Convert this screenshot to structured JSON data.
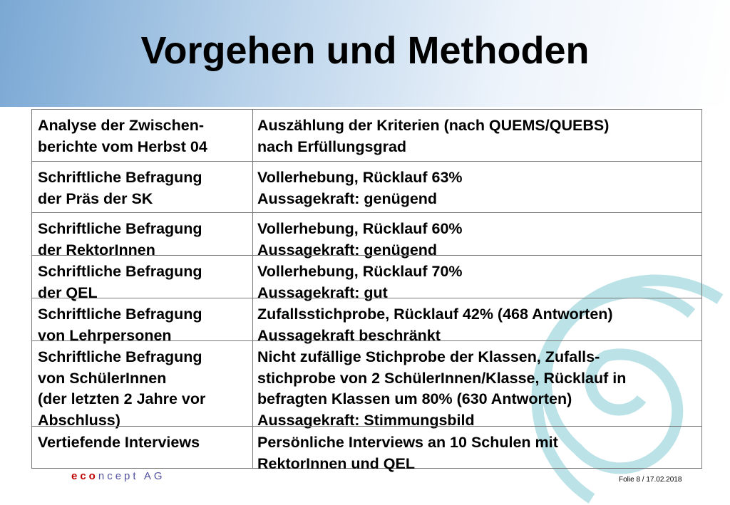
{
  "header": {
    "title": "Vorgehen und Methoden"
  },
  "table": {
    "rows": [
      [
        [
          "Analyse der Zwischen-",
          "berichte vom Herbst 04"
        ],
        [
          "Auszählung der Kriterien (nach QUEMS/QUEBS)",
          "nach Erfüllungsgrad"
        ]
      ],
      [
        [
          "Schriftliche Befragung",
          "der Präs der SK"
        ],
        [
          "Vollerhebung, Rücklauf 63%",
          "Aussagekraft: genügend"
        ]
      ],
      [
        [
          "Schriftliche Befragung",
          "der RektorInnen"
        ],
        [
          "Vollerhebung, Rücklauf 60%",
          "Aussagekraft: genügend"
        ]
      ],
      [
        [
          "Schriftliche Befragung",
          "der QEL"
        ],
        [
          "Vollerhebung, Rücklauf 70%",
          "Aussagekraft: gut"
        ]
      ],
      [
        [
          "Schriftliche Befragung",
          "von Lehrpersonen"
        ],
        [
          "Zufallsstichprobe, Rücklauf 42% (468 Antworten)",
          "Aussagekraft beschränkt"
        ]
      ],
      [
        [
          "Schriftliche Befragung",
          "von SchülerInnen",
          "(der letzten 2 Jahre vor",
          "Abschluss)"
        ],
        [
          "Nicht zufällige Stichprobe der Klassen, Zufalls-",
          "stichprobe von 2 SchülerInnen/Klasse, Rücklauf in",
          "befragten Klassen um 80% (630 Antworten)",
          "Aussagekraft: Stimmungsbild"
        ]
      ],
      [
        [
          "Vertiefende Interviews"
        ],
        [
          "Persönliche Interviews an 10 Schulen mit",
          "RektorInnen und QEL"
        ]
      ]
    ]
  },
  "footer": {
    "logo_a": "eco",
    "logo_b": "ncept AG",
    "slide": "Folie 8  / 17.02.2018"
  }
}
